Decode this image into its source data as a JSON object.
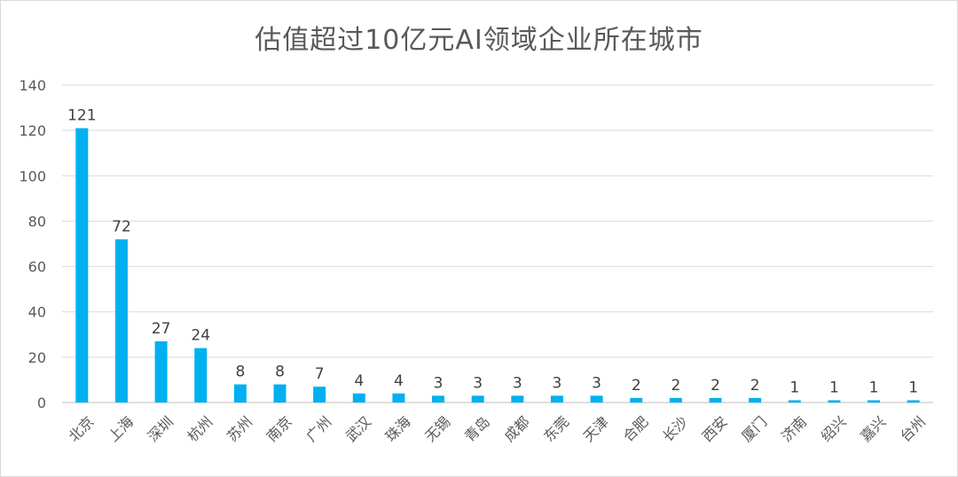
{
  "chart_data": {
    "type": "bar",
    "title": "估值超过10亿元AI领域企业所在城市",
    "xlabel": "",
    "ylabel": "",
    "ylim": [
      0,
      140
    ],
    "yticks": [
      0,
      20,
      40,
      60,
      80,
      100,
      120,
      140
    ],
    "grid": true,
    "legend": "none",
    "bar_color": "#00b0f0",
    "categories": [
      "北京",
      "上海",
      "深圳",
      "杭州",
      "苏州",
      "南京",
      "广州",
      "武汉",
      "珠海",
      "无锡",
      "青岛",
      "成都",
      "东莞",
      "天津",
      "合肥",
      "长沙",
      "西安",
      "厦门",
      "济南",
      "绍兴",
      "嘉兴",
      "台州"
    ],
    "values": [
      121,
      72,
      27,
      24,
      8,
      8,
      7,
      4,
      4,
      3,
      3,
      3,
      3,
      3,
      2,
      2,
      2,
      2,
      1,
      1,
      1,
      1
    ]
  }
}
